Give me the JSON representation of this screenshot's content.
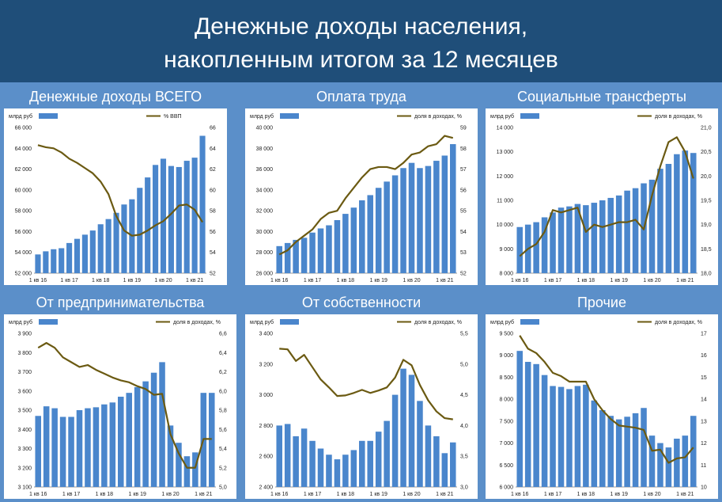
{
  "header": {
    "title_line1": "Денежные доходы населения,",
    "title_line2": "накопленным итогом за 12 месяцев"
  },
  "colors": {
    "header_bg": "#1f4e79",
    "page_bg": "#5b8fc9",
    "bar": "#4a86cc",
    "line": "#6b5a12"
  },
  "chart_data": [
    {
      "type": "bar",
      "title": "Денежные доходы ВСЕГО",
      "legend_bar": "млрд руб",
      "legend_line": "% ВВП",
      "x_ticks": [
        "1 кв 16",
        "1 кв 17",
        "1 кв 18",
        "1 кв 19",
        "1 кв 20",
        "1 кв 21"
      ],
      "ylim_left": [
        52000,
        66000
      ],
      "yticks_left": [
        "52 000",
        "54 000",
        "56 000",
        "58 000",
        "60 000",
        "62 000",
        "64 000",
        "66 000"
      ],
      "ylim_right": [
        52,
        66
      ],
      "yticks_right": [
        "52",
        "54",
        "56",
        "58",
        "60",
        "62",
        "64",
        "66"
      ],
      "bars": [
        53800,
        54100,
        54300,
        54400,
        54900,
        55300,
        55700,
        56100,
        56700,
        57200,
        57800,
        58600,
        59100,
        60200,
        61200,
        62400,
        63000,
        62300,
        62200,
        62800,
        63100,
        65200
      ],
      "line": [
        64.3,
        64.1,
        64.0,
        63.6,
        63.0,
        62.6,
        62.1,
        61.6,
        60.8,
        59.6,
        57.5,
        56.1,
        55.6,
        55.7,
        56.1,
        56.6,
        57.0,
        57.7,
        58.5,
        58.6,
        58.1,
        56.9
      ]
    },
    {
      "type": "bar",
      "title": "Оплата труда",
      "legend_bar": "млрд руб",
      "legend_line": "доля в доходах, %",
      "x_ticks": [
        "1 кв 16",
        "1 кв 17",
        "1 кв 18",
        "1 кв 19",
        "1 кв 20",
        "1 кв 21"
      ],
      "ylim_left": [
        26000,
        40000
      ],
      "yticks_left": [
        "26 000",
        "28 000",
        "30 000",
        "32 000",
        "34 000",
        "36 000",
        "38 000",
        "40 000"
      ],
      "ylim_right": [
        52,
        59
      ],
      "yticks_right": [
        "52",
        "53",
        "54",
        "55",
        "56",
        "57",
        "58",
        "59"
      ],
      "bars": [
        28600,
        28900,
        29200,
        29400,
        29900,
        30300,
        30600,
        31100,
        31700,
        32300,
        33000,
        33500,
        34200,
        34800,
        35400,
        36100,
        36600,
        36100,
        36300,
        36800,
        37300,
        38400
      ],
      "line": [
        52.9,
        53.1,
        53.5,
        53.8,
        54.1,
        54.6,
        54.9,
        55.0,
        55.6,
        56.1,
        56.6,
        57.0,
        57.1,
        57.1,
        57.0,
        57.3,
        57.7,
        57.8,
        58.1,
        58.2,
        58.6,
        58.5
      ]
    },
    {
      "type": "bar",
      "title": "Социальные трансферты",
      "legend_bar": "млрд руб",
      "legend_line": "доля в доходах, %",
      "x_ticks": [
        "1 кв 16",
        "1 кв 17",
        "1 кв 18",
        "1 кв 19",
        "1 кв 20",
        "1 кв 21"
      ],
      "ylim_left": [
        8000,
        14000
      ],
      "yticks_left": [
        "8 000",
        "9 000",
        "10 000",
        "11 000",
        "12 000",
        "13 000",
        "14 000"
      ],
      "ylim_right": [
        18.0,
        21.0
      ],
      "yticks_right": [
        "18,0",
        "18,5",
        "19,0",
        "19,5",
        "20,0",
        "20,5",
        "21,0"
      ],
      "bars": [
        9900,
        10000,
        10100,
        10300,
        10500,
        10700,
        10750,
        10850,
        10800,
        10900,
        11000,
        11100,
        11200,
        11400,
        11500,
        11700,
        11850,
        12300,
        12500,
        12900,
        13050,
        12950
      ],
      "line": [
        18.35,
        18.5,
        18.6,
        18.85,
        19.3,
        19.25,
        19.3,
        19.35,
        18.85,
        19.0,
        18.95,
        19.0,
        19.05,
        19.05,
        19.1,
        18.9,
        19.6,
        20.2,
        20.7,
        20.8,
        20.5,
        19.95
      ]
    },
    {
      "type": "bar",
      "title": "От предпринимательства",
      "legend_bar": "млрд руб",
      "legend_line": "доля в доходах, %",
      "x_ticks": [
        "1 кв 16",
        "1 кв 17",
        "1 кв 18",
        "1 кв 19",
        "1 кв 20",
        "1 кв 21"
      ],
      "ylim_left": [
        3100,
        3900
      ],
      "yticks_left": [
        "3 100",
        "3 200",
        "3 300",
        "3 400",
        "3 500",
        "3 600",
        "3 700",
        "3 800",
        "3 900"
      ],
      "ylim_right": [
        5.0,
        6.6
      ],
      "yticks_right": [
        "5,0",
        "5,2",
        "5,4",
        "5,6",
        "5,8",
        "6,0",
        "6,2",
        "6,4",
        "6,6"
      ],
      "bars": [
        3470,
        3520,
        3510,
        3465,
        3465,
        3500,
        3510,
        3515,
        3530,
        3540,
        3570,
        3590,
        3620,
        3650,
        3695,
        3750,
        3420,
        3330,
        3260,
        3280,
        3590,
        3590
      ],
      "line": [
        6.45,
        6.5,
        6.45,
        6.35,
        6.3,
        6.25,
        6.27,
        6.22,
        6.18,
        6.14,
        6.11,
        6.09,
        6.05,
        6.02,
        5.96,
        5.97,
        5.55,
        5.35,
        5.2,
        5.2,
        5.5,
        5.5
      ]
    },
    {
      "type": "bar",
      "title": "От собственности",
      "legend_bar": "млрд руб",
      "legend_line": "доля в доходах, %",
      "x_ticks": [
        "1 кв 16",
        "1 кв 17",
        "1 кв 18",
        "1 кв 19",
        "1 кв 20",
        "1 кв 21"
      ],
      "ylim_left": [
        2400,
        3400
      ],
      "yticks_left": [
        "2 400",
        "2 600",
        "2 800",
        "3 000",
        "3 200",
        "3 400"
      ],
      "ylim_right": [
        3.0,
        5.5
      ],
      "yticks_right": [
        "3,0",
        "3,5",
        "4,0",
        "4,5",
        "5,0",
        "5,5"
      ],
      "bars": [
        2800,
        2810,
        2730,
        2780,
        2700,
        2650,
        2610,
        2580,
        2610,
        2640,
        2700,
        2700,
        2760,
        2830,
        3000,
        3170,
        3130,
        2960,
        2800,
        2730,
        2620,
        2690
      ],
      "line": [
        5.25,
        5.24,
        5.05,
        5.15,
        4.95,
        4.75,
        4.62,
        4.48,
        4.49,
        4.53,
        4.58,
        4.53,
        4.57,
        4.62,
        4.78,
        5.07,
        4.98,
        4.66,
        4.41,
        4.23,
        4.12,
        4.1
      ]
    },
    {
      "type": "bar",
      "title": "Прочие",
      "legend_bar": "млрд руб",
      "legend_line": "доля в доходах, %",
      "x_ticks": [
        "1 кв 16",
        "1 кв 17",
        "1 кв 18",
        "1 кв 19",
        "1 кв 20",
        "1 кв 21"
      ],
      "ylim_left": [
        6000,
        9500
      ],
      "yticks_left": [
        "6 000",
        "6 500",
        "7 000",
        "7 500",
        "8 000",
        "8 500",
        "9 000",
        "9 500"
      ],
      "ylim_right": [
        10,
        17
      ],
      "yticks_right": [
        "10",
        "11",
        "12",
        "13",
        "14",
        "15",
        "16",
        "17"
      ],
      "bars": [
        9100,
        8850,
        8800,
        8550,
        8300,
        8280,
        8230,
        8300,
        8330,
        7970,
        7750,
        7620,
        7540,
        7600,
        7680,
        7800,
        7170,
        7000,
        6900,
        7100,
        7170,
        7620
      ],
      "line": [
        16.9,
        16.3,
        16.1,
        15.7,
        15.2,
        15.05,
        14.8,
        14.8,
        14.8,
        14.0,
        13.5,
        13.1,
        12.8,
        12.75,
        12.7,
        12.6,
        11.65,
        11.7,
        11.1,
        11.3,
        11.35,
        11.8
      ]
    }
  ]
}
